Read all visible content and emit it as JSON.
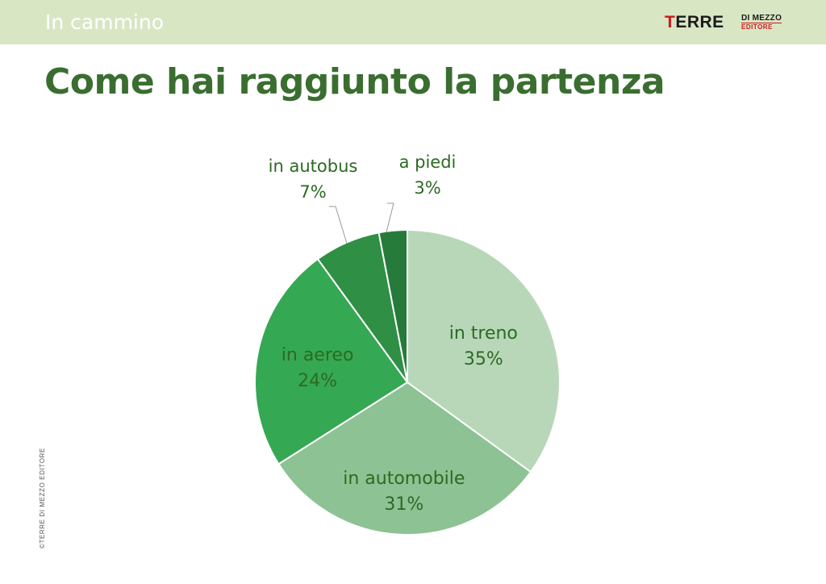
{
  "header": {
    "section": "In cammino",
    "logo_main_red": "T",
    "logo_main_rest": "ERRE",
    "logo_line1": "DI MEZZO",
    "logo_line2": "EDITORE"
  },
  "page_title": "Come hai raggiunto la partenza",
  "copyright": "©TERRE DI MEZZO EDITORE",
  "chart_data": {
    "type": "pie",
    "title": "Come hai raggiunto la partenza",
    "slices": [
      {
        "label": "in treno",
        "value": 35,
        "value_label": "35%",
        "color": "#b8d7b9"
      },
      {
        "label": "in automobile",
        "value": 31,
        "value_label": "31%",
        "color": "#8dc294"
      },
      {
        "label": "in aereo",
        "value": 24,
        "value_label": "24%",
        "color": "#35a853"
      },
      {
        "label": "in autobus",
        "value": 7,
        "value_label": "7%",
        "color": "#2e8f45"
      },
      {
        "label": "a piedi",
        "value": 3,
        "value_label": "3%",
        "color": "#267a3a"
      }
    ]
  }
}
